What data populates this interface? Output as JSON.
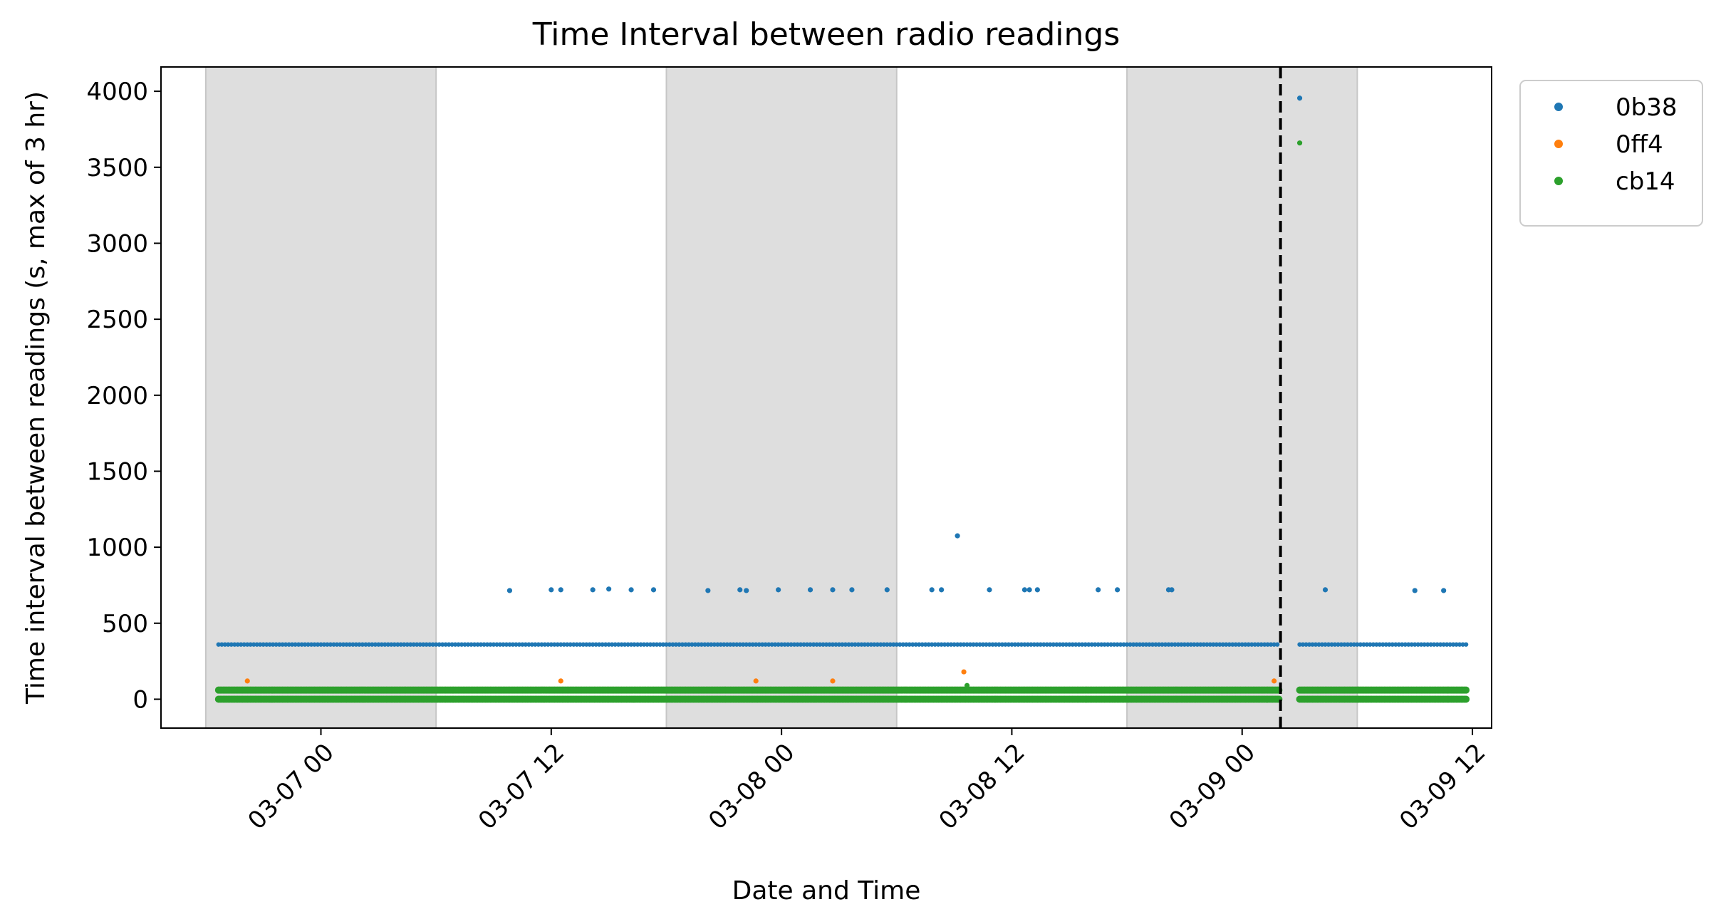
{
  "chart_data": {
    "type": "scatter",
    "title": "Time Interval between radio readings",
    "xlabel": "Date and Time",
    "ylabel": "Time interval between readings (s, max of 3 hr)",
    "x_axis": {
      "type": "datetime",
      "range": [
        "2025-03-06 15:40",
        "2025-03-09 13:00"
      ],
      "ticks": [
        {
          "value": "2025-03-07 00:00",
          "label": "03-07 00"
        },
        {
          "value": "2025-03-07 12:00",
          "label": "03-07 12"
        },
        {
          "value": "2025-03-08 00:00",
          "label": "03-08 00"
        },
        {
          "value": "2025-03-08 12:00",
          "label": "03-08 12"
        },
        {
          "value": "2025-03-09 00:00",
          "label": "03-09 00"
        },
        {
          "value": "2025-03-09 12:00",
          "label": "03-09 12"
        }
      ]
    },
    "y_axis": {
      "range": [
        -190,
        4160
      ],
      "ticks": [
        0,
        500,
        1000,
        1500,
        2000,
        2500,
        3000,
        3500,
        4000
      ]
    },
    "shaded_regions": [
      {
        "start": "2025-03-06 18:00",
        "end": "2025-03-07 06:00"
      },
      {
        "start": "2025-03-07 18:00",
        "end": "2025-03-08 06:00"
      },
      {
        "start": "2025-03-08 18:00",
        "end": "2025-03-09 06:00"
      }
    ],
    "vertical_line": {
      "x": "2025-03-09 02:00",
      "style": "dashed",
      "color": "#000000"
    },
    "legend": {
      "position": "outside-right-top"
    },
    "grid": false,
    "series": [
      {
        "name": "0b38",
        "color": "#1f77b4",
        "baseline": {
          "value": 360,
          "start": "2025-03-06 18:40",
          "end": "2025-03-09 11:40",
          "gap": [
            "2025-03-09 02:00",
            "2025-03-09 03:00"
          ]
        },
        "points": [
          {
            "x": "2025-03-07 09:50",
            "y": 715
          },
          {
            "x": "2025-03-07 12:00",
            "y": 720
          },
          {
            "x": "2025-03-07 12:30",
            "y": 720
          },
          {
            "x": "2025-03-07 14:10",
            "y": 720
          },
          {
            "x": "2025-03-07 15:00",
            "y": 725
          },
          {
            "x": "2025-03-07 16:10",
            "y": 720
          },
          {
            "x": "2025-03-07 17:20",
            "y": 720
          },
          {
            "x": "2025-03-07 20:10",
            "y": 715
          },
          {
            "x": "2025-03-07 21:50",
            "y": 720
          },
          {
            "x": "2025-03-07 22:10",
            "y": 715
          },
          {
            "x": "2025-03-07 23:50",
            "y": 720
          },
          {
            "x": "2025-03-08 01:30",
            "y": 720
          },
          {
            "x": "2025-03-08 02:40",
            "y": 720
          },
          {
            "x": "2025-03-08 03:40",
            "y": 720
          },
          {
            "x": "2025-03-08 05:30",
            "y": 720
          },
          {
            "x": "2025-03-08 07:50",
            "y": 720
          },
          {
            "x": "2025-03-08 08:20",
            "y": 720
          },
          {
            "x": "2025-03-08 09:10",
            "y": 1075
          },
          {
            "x": "2025-03-08 10:50",
            "y": 720
          },
          {
            "x": "2025-03-08 12:40",
            "y": 720
          },
          {
            "x": "2025-03-08 12:55",
            "y": 720
          },
          {
            "x": "2025-03-08 13:20",
            "y": 720
          },
          {
            "x": "2025-03-08 16:30",
            "y": 720
          },
          {
            "x": "2025-03-08 17:30",
            "y": 720
          },
          {
            "x": "2025-03-08 20:10",
            "y": 720
          },
          {
            "x": "2025-03-08 20:20",
            "y": 720
          },
          {
            "x": "2025-03-09 03:00",
            "y": 3955
          },
          {
            "x": "2025-03-09 04:20",
            "y": 720
          },
          {
            "x": "2025-03-09 09:00",
            "y": 715
          },
          {
            "x": "2025-03-09 10:30",
            "y": 715
          }
        ]
      },
      {
        "name": "0ff4",
        "color": "#ff7f0e",
        "points": [
          {
            "x": "2025-03-06 20:10",
            "y": 120
          },
          {
            "x": "2025-03-07 12:30",
            "y": 120
          },
          {
            "x": "2025-03-07 22:40",
            "y": 120
          },
          {
            "x": "2025-03-08 02:40",
            "y": 120
          },
          {
            "x": "2025-03-08 09:30",
            "y": 180
          },
          {
            "x": "2025-03-09 01:40",
            "y": 120
          }
        ]
      },
      {
        "name": "cb14",
        "color": "#2ca02c",
        "baseline": {
          "low": 0,
          "high": 60,
          "start": "2025-03-06 18:40",
          "end": "2025-03-09 11:40",
          "gap": [
            "2025-03-09 02:00",
            "2025-03-09 03:00"
          ]
        },
        "points": [
          {
            "x": "2025-03-08 09:40",
            "y": 90
          },
          {
            "x": "2025-03-09 03:00",
            "y": 3660
          }
        ]
      }
    ]
  }
}
